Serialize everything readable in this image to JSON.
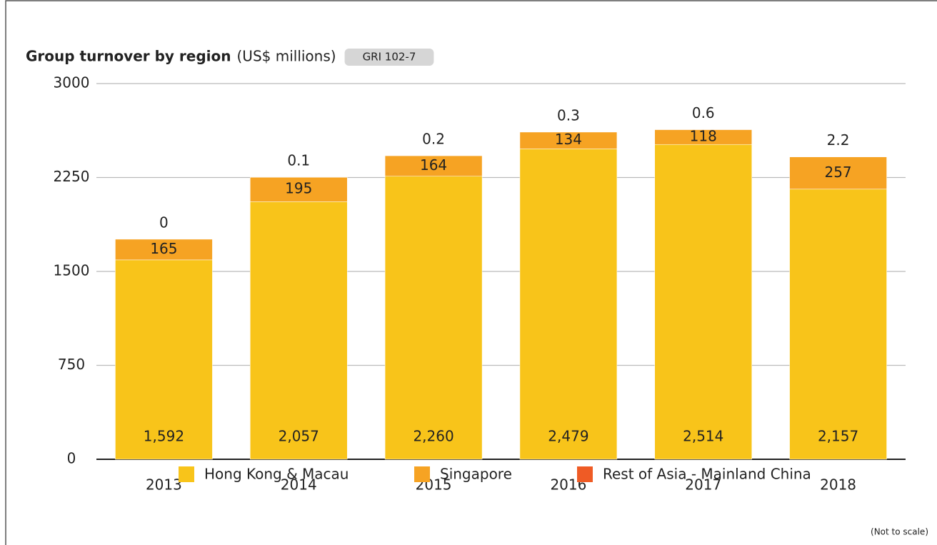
{
  "chart_data": {
    "type": "stacked_bar",
    "title": "Group turnover by region",
    "subtitle": "(US$ millions)",
    "badge": "GRI 102-7",
    "note": "(Not to scale)",
    "categories": [
      "2013",
      "2014",
      "2015",
      "2016",
      "2017",
      "2018"
    ],
    "series": [
      {
        "name": "Hong Kong & Macau",
        "color": "#f8c41a",
        "values": [
          1592,
          2057,
          2260,
          2479,
          2514,
          2157
        ],
        "value_labels": [
          "1,592",
          "2,057",
          "2,260",
          "2,479",
          "2,514",
          "2,157"
        ]
      },
      {
        "name": "Singapore",
        "color": "#f6a323",
        "values": [
          165,
          195,
          164,
          134,
          118,
          257
        ]
      },
      {
        "name": "Rest of Asia - Mainland China",
        "color": "#ef5b25",
        "values": [
          0,
          0.1,
          0.2,
          0.3,
          0.6,
          2.2
        ]
      }
    ],
    "ylim": [
      0,
      3000
    ],
    "yticks": [
      0,
      750,
      1500,
      2250,
      3000
    ],
    "grid": true
  }
}
